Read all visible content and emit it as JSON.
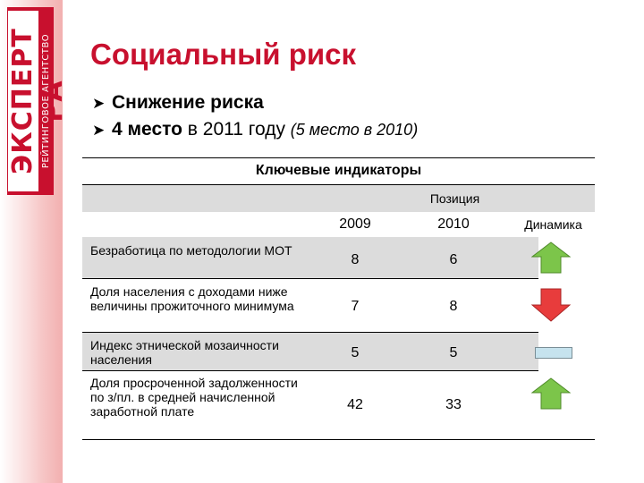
{
  "logo": {
    "main": "ЭКСПЕРТ РА",
    "sub": "РЕЙТИНГОВОЕ АГЕНТСТВО"
  },
  "title": "Социальный риск",
  "bullets": [
    {
      "text": "Снижение риска"
    },
    {
      "bold": "4 место",
      "regular": " в 2011 году ",
      "italic": "(5 место в 2010)"
    }
  ],
  "table": {
    "title": "Ключевые индикаторы",
    "position_header": "Позиция",
    "col_2009": "2009",
    "col_2010": "2010",
    "col_dynamics": "Динамика",
    "rows": [
      {
        "label": "Безработица по методологии МОТ",
        "v2009": "8",
        "v2010": "6",
        "dynamics": "up-arrow-icon"
      },
      {
        "label": "Доля населения с доходами ниже величины прожиточного минимума",
        "v2009": "7",
        "v2010": "8",
        "dynamics": "down-arrow-icon"
      },
      {
        "label": "Индекс этнической мозаичности населения",
        "v2009": "5",
        "v2010": "5",
        "dynamics": "flat-bar-icon"
      },
      {
        "label": "Доля просроченной задолженности по з/пл. в средней начисленной заработной плате",
        "v2009": "42",
        "v2010": "33",
        "dynamics": "up-arrow-icon"
      }
    ]
  },
  "colors": {
    "accent": "#c8102e",
    "up": "#7cc54a",
    "down": "#e83c3c",
    "flat": "#c6e3ee"
  }
}
